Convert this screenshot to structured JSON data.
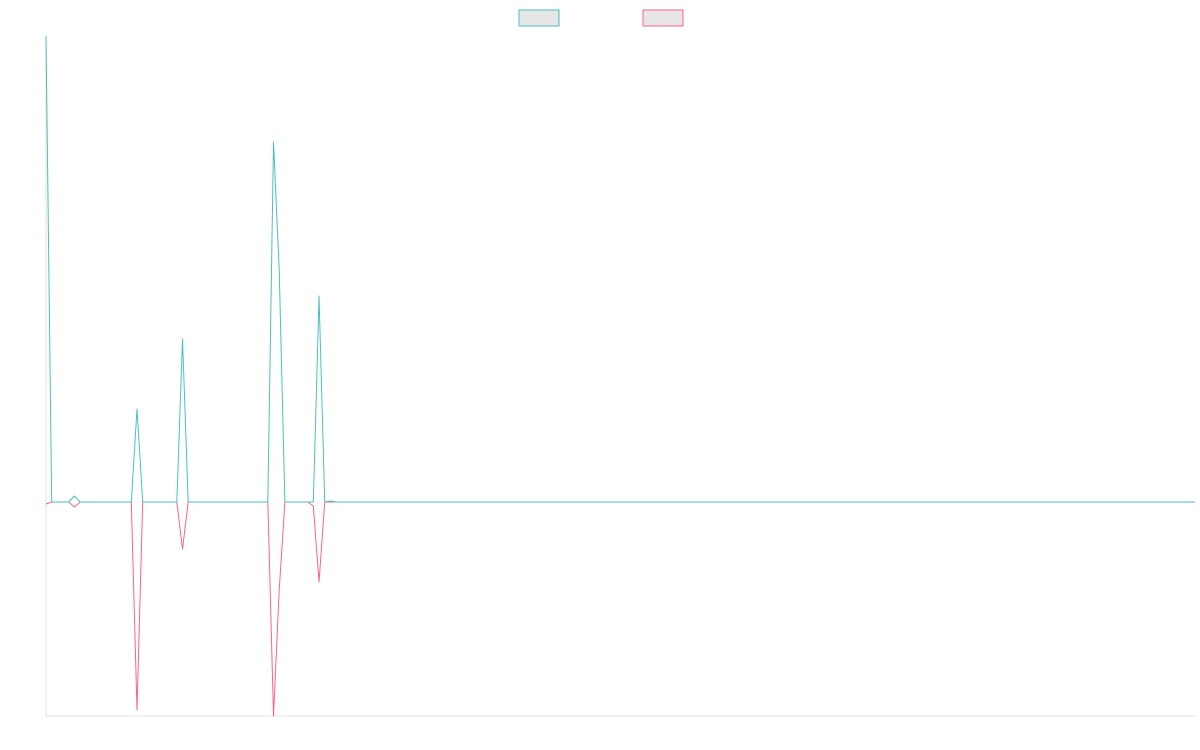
{
  "chart_data": {
    "type": "line",
    "ylim": [
      -214,
      466
    ],
    "grid": false,
    "legend": "top",
    "series": [
      {
        "color": "#ff6384",
        "values": [
          -2,
          0,
          0,
          0,
          0,
          -5,
          0,
          0,
          0,
          0,
          0,
          0,
          0,
          0,
          0,
          0,
          -208,
          0,
          0,
          0,
          0,
          0,
          0,
          0,
          -47,
          0,
          0,
          0,
          0,
          0,
          0,
          0,
          0,
          0,
          0,
          0,
          0,
          0,
          0,
          0,
          -214,
          -88,
          0,
          0,
          0,
          0,
          0,
          -4,
          -80,
          0,
          0,
          0,
          0,
          0,
          0,
          0,
          0,
          0,
          0,
          0,
          0,
          0,
          0,
          0,
          0,
          0,
          0,
          0,
          0,
          0,
          0,
          0,
          0,
          0,
          0,
          0,
          0,
          0,
          0,
          0,
          0,
          0,
          0,
          0,
          0,
          0,
          0,
          0,
          0,
          0,
          0,
          0,
          0,
          0,
          0,
          0,
          0,
          0,
          0,
          0,
          0,
          0,
          0,
          0,
          0,
          0,
          0,
          0,
          0,
          0,
          0,
          0,
          0,
          0,
          0,
          0,
          0,
          0,
          0,
          0,
          0,
          0,
          0,
          0,
          0,
          0,
          0,
          0,
          0,
          0,
          0,
          0,
          0,
          0,
          0,
          0,
          0,
          0,
          0,
          0,
          0,
          0,
          0,
          0,
          0,
          0,
          0,
          0,
          0,
          0,
          0,
          0,
          0,
          0,
          0,
          0,
          0,
          0,
          0,
          0,
          0,
          0,
          0,
          0,
          0,
          0,
          0,
          0,
          0,
          0,
          0,
          0,
          0,
          0,
          0,
          0,
          0,
          0,
          0,
          0,
          0,
          0,
          0,
          0,
          0,
          0,
          0,
          0,
          0,
          0,
          0,
          0,
          0,
          0,
          0,
          0,
          0,
          0,
          0,
          0,
          0,
          0,
          0
        ]
      },
      {
        "color": "#4bc0c0",
        "values": [
          466,
          0,
          0,
          0,
          0,
          6,
          0,
          0,
          0,
          0,
          0,
          0,
          0,
          0,
          0,
          0,
          93,
          0,
          0,
          0,
          0,
          0,
          0,
          0,
          163,
          0,
          0,
          0,
          0,
          0,
          0,
          0,
          0,
          0,
          0,
          0,
          0,
          0,
          0,
          0,
          360,
          232,
          0,
          0,
          0,
          0,
          0,
          0,
          206,
          0,
          1,
          0,
          0,
          0,
          0,
          0,
          0,
          0,
          0,
          0,
          0,
          0,
          0,
          0,
          0,
          0,
          0,
          0,
          0,
          0,
          0,
          0,
          0,
          0,
          0,
          0,
          0,
          0,
          0,
          0,
          0,
          0,
          0,
          0,
          0,
          0,
          0,
          0,
          0,
          0,
          0,
          0,
          0,
          0,
          0,
          0,
          0,
          0,
          0,
          0,
          0,
          0,
          0,
          0,
          0,
          0,
          0,
          0,
          0,
          0,
          0,
          0,
          0,
          0,
          0,
          0,
          0,
          0,
          0,
          0,
          0,
          0,
          0,
          0,
          0,
          0,
          0,
          0,
          0,
          0,
          0,
          0,
          0,
          0,
          0,
          0,
          0,
          0,
          0,
          0,
          0,
          0,
          0,
          0,
          0,
          0,
          0,
          0,
          0,
          0,
          0,
          0,
          0,
          0,
          0,
          0,
          0,
          0,
          0,
          0,
          0,
          0,
          0,
          0,
          0,
          0,
          0,
          0,
          0,
          0,
          0,
          0,
          0,
          0,
          0,
          0,
          0,
          0,
          0,
          0,
          0,
          0,
          0,
          0,
          0,
          0,
          0,
          0,
          0,
          0,
          0,
          0,
          0,
          0,
          0,
          0,
          0,
          0,
          0,
          0,
          0,
          0,
          0
        ]
      }
    ]
  }
}
